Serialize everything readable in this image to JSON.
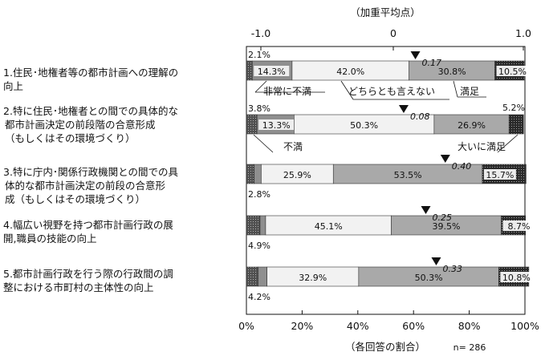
{
  "chart_data": {
    "type": "bar",
    "stacked": "100%",
    "top_axis": {
      "label": "（加重平均点）",
      "ticks": [
        "-1.0",
        "0",
        "1.0"
      ]
    },
    "bottom_axis": {
      "label": "（各回答の割合）",
      "ticks": [
        "0%",
        "20%",
        "40%",
        "60%",
        "80%",
        "100%"
      ]
    },
    "n_note": "n= 286",
    "legend_categories": [
      "不満",
      "非常に不満",
      "どちらとも言えない",
      "満足",
      "大いに満足"
    ],
    "categories": [
      [
        "1.住民･地権者等の都市計画への理解の",
        "向上"
      ],
      [
        "2.特に住民･地権者との間での具体的な",
        "都市計画決定の前段階の合意形成",
        "（もしくはその環境づくり）"
      ],
      [
        "3.特に庁内･関係行政機関との間での具",
        "体的な都市計画決定の前段の合意形",
        "成（もしくはその環境づくり）"
      ],
      [
        "4.幅広い視野を持つ都市計画行政の展",
        "開,職員の技能の向上"
      ],
      [
        "5.都市計画行政を行う際の行政間の調",
        "整における市町村の主体性の向上"
      ]
    ],
    "rows": [
      {
        "values": [
          2.1,
          14.3,
          42.0,
          30.8,
          10.5
        ],
        "labels": [
          "2.1%",
          "14.3%",
          "42.0%",
          "30.8%",
          "10.5%"
        ],
        "weighted_mean": "0.17"
      },
      {
        "values": [
          3.8,
          13.3,
          50.3,
          26.9,
          5.2
        ],
        "labels": [
          "3.8%",
          "13.3%",
          "50.3%",
          "26.9%",
          "5.2%"
        ],
        "weighted_mean": "0.08"
      },
      {
        "values": [
          2.8,
          2.5,
          25.9,
          53.5,
          15.7
        ],
        "labels": [
          "2.8%",
          "",
          "25.9%",
          "53.5%",
          "15.7%"
        ],
        "weighted_mean": "0.40"
      },
      {
        "values": [
          4.9,
          2.0,
          45.1,
          39.5,
          8.7
        ],
        "labels": [
          "4.9%",
          "",
          "45.1%",
          "39.5%",
          "8.7%"
        ],
        "weighted_mean": "0.25"
      },
      {
        "values": [
          4.2,
          3.2,
          32.9,
          50.3,
          10.8
        ],
        "labels": [
          "4.2%",
          "",
          "32.9%",
          "50.3%",
          "10.8%"
        ],
        "weighted_mean": "0.33"
      }
    ],
    "colors": [
      "#555555",
      "#909090",
      "#efefef",
      "#a8a8a8",
      "#3a3a3a"
    ]
  }
}
